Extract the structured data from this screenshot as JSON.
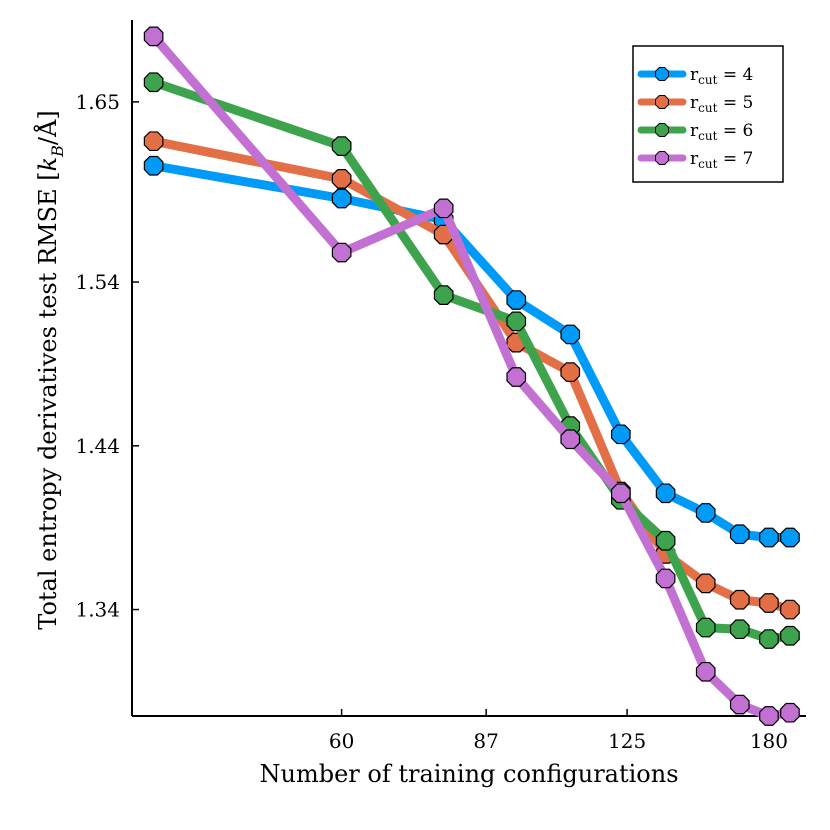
{
  "chart_data": {
    "type": "line",
    "title": "",
    "xlabel": "Number of training configurations",
    "ylabel": "Total entropy derivatives test RMSE [k_B/Å]",
    "ylabel_parts": {
      "main": "Total entropy derivatives test RMSE [",
      "k": "k",
      "sub": "B",
      "unit": "/Å]"
    },
    "x_scale": "log",
    "xlim": [
      35,
      198
    ],
    "ylim": [
      1.275,
      1.7
    ],
    "x_ticks": [
      60,
      87,
      125,
      180
    ],
    "x_tick_labels": [
      "60",
      "87",
      "125",
      "180"
    ],
    "y_ticks": [
      1.34,
      1.44,
      1.54,
      1.65
    ],
    "y_tick_labels": [
      "1.34",
      "1.44",
      "1.54",
      "1.65"
    ],
    "grid": false,
    "legend_position": "top-right",
    "x": [
      37,
      60,
      78,
      94,
      108,
      123,
      138,
      153,
      167,
      180,
      190
    ],
    "series": [
      {
        "name": "r_cut = 4",
        "label_main": "r",
        "label_sub": "cut",
        "label_value": " = 4",
        "color": "#009af9",
        "values": [
          1.611,
          1.591,
          1.578,
          1.529,
          1.508,
          1.447,
          1.411,
          1.399,
          1.386,
          1.384,
          1.384
        ]
      },
      {
        "name": "r_cut = 5",
        "label_main": "r",
        "label_sub": "cut",
        "label_value": " = 5",
        "color": "#e26f46",
        "values": [
          1.626,
          1.603,
          1.569,
          1.503,
          1.485,
          1.412,
          1.374,
          1.356,
          1.346,
          1.344,
          1.34
        ]
      },
      {
        "name": "r_cut = 6",
        "label_main": "r",
        "label_sub": "cut",
        "label_value": " = 6",
        "color": "#3da44d",
        "values": [
          1.662,
          1.623,
          1.532,
          1.516,
          1.452,
          1.407,
          1.382,
          1.329,
          1.328,
          1.322,
          1.324
        ]
      },
      {
        "name": "r_cut = 7",
        "label_main": "r",
        "label_sub": "cut",
        "label_value": " = 7",
        "color": "#c271d2",
        "values": [
          1.69,
          1.558,
          1.585,
          1.482,
          1.444,
          1.411,
          1.359,
          1.302,
          1.282,
          1.275,
          1.277
        ]
      }
    ]
  }
}
